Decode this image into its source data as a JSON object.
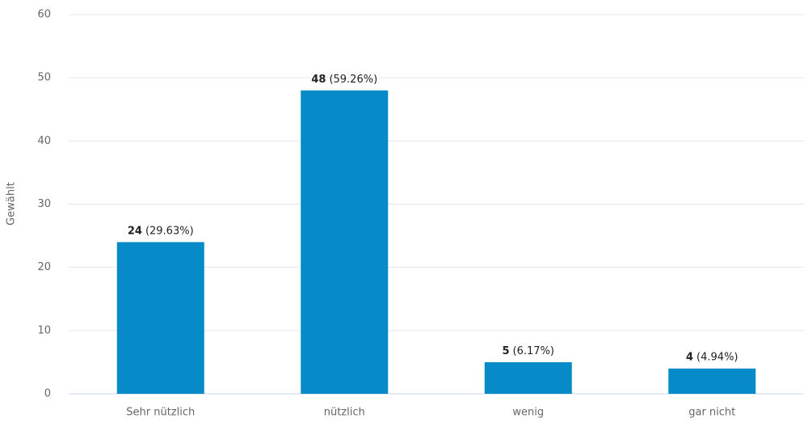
{
  "chart_data": {
    "type": "bar",
    "y_label": "Gewählt",
    "categories": [
      "Sehr nützlich",
      "nützlich",
      "wenig",
      "gar nicht"
    ],
    "values": [
      24,
      48,
      5,
      4
    ],
    "share_labels": [
      "(29.63%)",
      "(59.26%)",
      "(6.17%)",
      "(4.94%)"
    ],
    "color": "#068bc8",
    "ylim": [
      0,
      60
    ],
    "yticks": [
      0,
      10,
      20,
      30,
      40,
      50,
      60
    ],
    "grid": true
  }
}
